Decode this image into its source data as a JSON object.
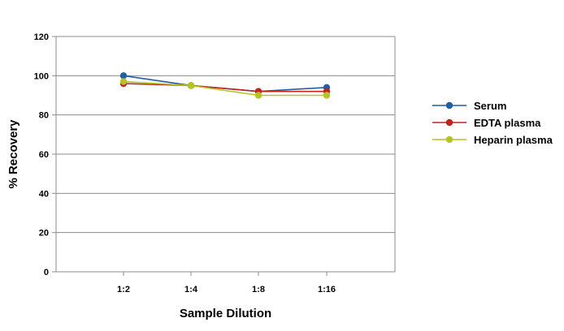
{
  "chart_data": {
    "type": "line",
    "categories": [
      "1:2",
      "1:4",
      "1:8",
      "1:16"
    ],
    "series": [
      {
        "name": "Serum",
        "color": "#1f5fa6",
        "values": [
          100,
          95,
          92,
          94
        ]
      },
      {
        "name": "EDTA plasma",
        "color": "#c0241c",
        "values": [
          96,
          95,
          92,
          92
        ]
      },
      {
        "name": "Heparin plasma",
        "color": "#b5c424",
        "values": [
          97,
          95,
          90,
          90
        ]
      }
    ],
    "xlabel": "Sample Dilution",
    "ylabel": "% Recovery",
    "ylim": [
      0,
      120
    ],
    "yticks": [
      0,
      20,
      40,
      60,
      80,
      100,
      120
    ],
    "grid": true,
    "legend_position": "right",
    "plot_border_color": "#8c8c8c",
    "grid_color": "#8c8c8c"
  }
}
